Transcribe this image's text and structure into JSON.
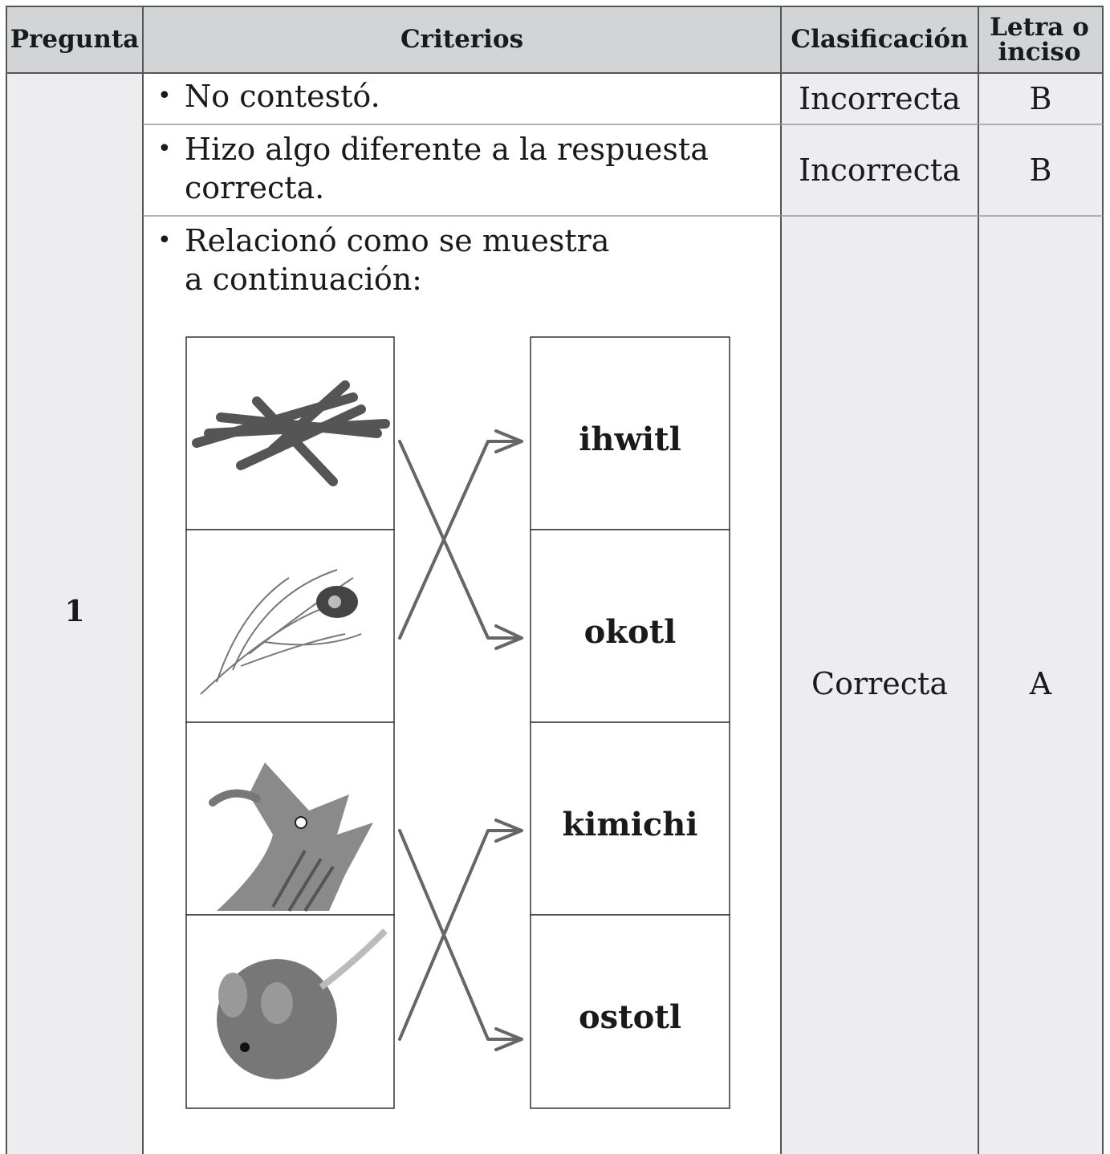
{
  "table": {
    "headers": [
      "Pregunta",
      "Criterios",
      "Clasificación",
      "Letra o inciso"
    ],
    "question": "1",
    "rows": [
      {
        "criterion": "No contestó.",
        "classification": "Incorrecta",
        "letter": "B"
      },
      {
        "criterion": "Hizo algo diferente a la respuesta correcta.",
        "classification": "Incorrecta",
        "letter": "B"
      },
      {
        "criterion": "Relacionó como se muestra a continuación:",
        "classification": "Correcta",
        "letter": "A"
      }
    ]
  },
  "matching": {
    "words": [
      "ihwitl",
      "okotl",
      "kimichi",
      "ostotl"
    ]
  }
}
